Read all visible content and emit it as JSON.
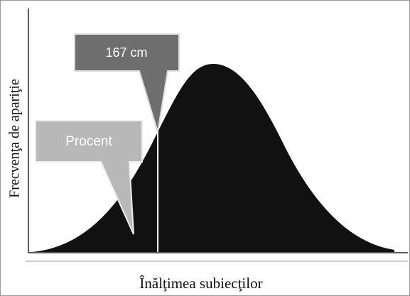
{
  "callouts": {
    "value": "167 cm",
    "share": "Procent"
  },
  "axes": {
    "y_label": "Frecvenţa de apariţie",
    "x_label": "Înălţimea subiecţilor"
  }
}
